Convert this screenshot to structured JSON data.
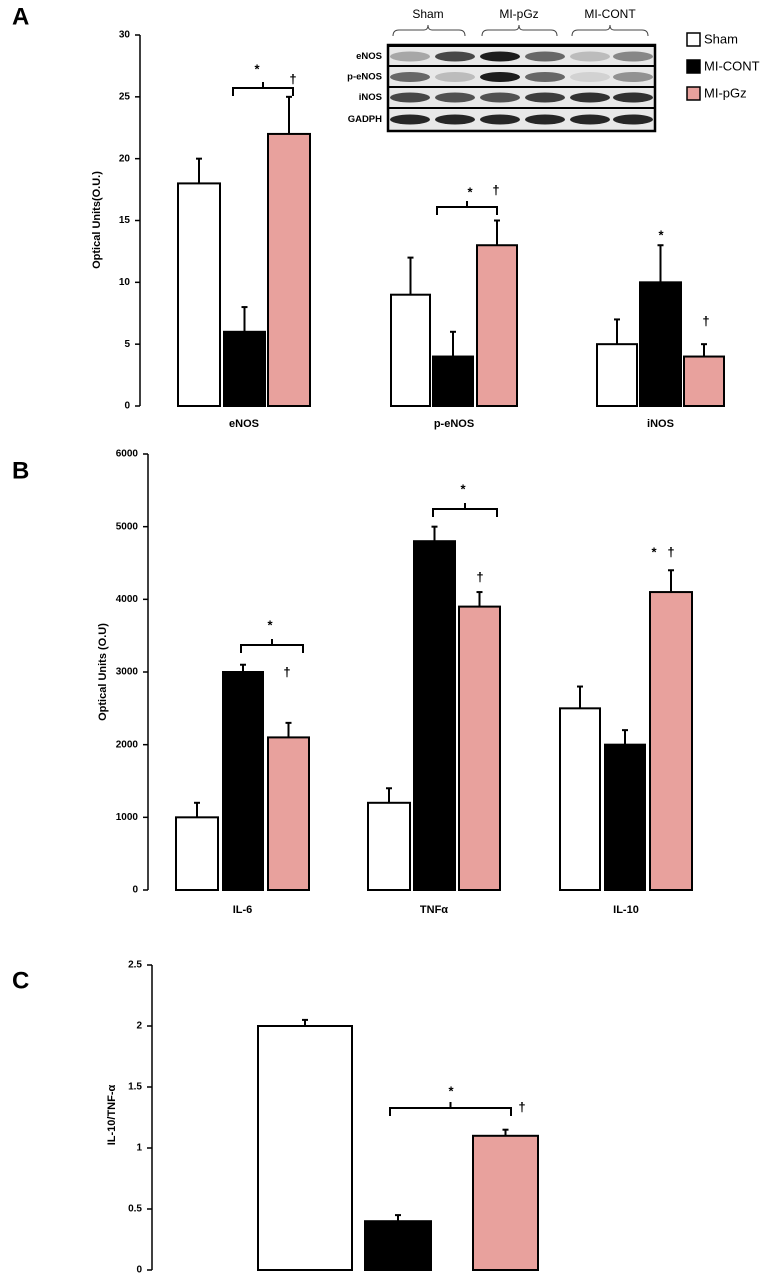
{
  "chart_data": [
    {
      "type": "bar",
      "panel": "A",
      "y_label": "Optical Units(O.U.)",
      "categories": [
        "eNOS",
        "p-eNOS",
        "iNOS"
      ],
      "series": [
        {
          "name": "Sham",
          "color": "#ffffff",
          "values": [
            18,
            9,
            5
          ],
          "errors": [
            2,
            3,
            2
          ]
        },
        {
          "name": "MI-CONT",
          "color": "#000000",
          "values": [
            6,
            4,
            10
          ],
          "errors": [
            2,
            2,
            3
          ]
        },
        {
          "name": "MI-pGz",
          "color": "#e8a19d",
          "values": [
            22,
            13,
            4
          ],
          "errors": [
            3,
            2,
            1
          ]
        }
      ],
      "ylim": [
        0,
        30
      ],
      "yticks": [
        0,
        5,
        10,
        15,
        20,
        25,
        30
      ],
      "legend": "top-right",
      "annotations": [
        "*",
        "†",
        "*",
        "†",
        "*",
        "†"
      ],
      "inset": {
        "rows": [
          "eNOS",
          "p-eNOS",
          "iNOS",
          "GADPH"
        ],
        "groups": [
          "Sham",
          "MI-pGz",
          "MI-CONT"
        ]
      }
    },
    {
      "type": "bar",
      "panel": "B",
      "y_label": "Optical Units (O.U)",
      "categories": [
        "IL-6",
        "TNFα",
        "IL-10"
      ],
      "series": [
        {
          "name": "Sham",
          "color": "#ffffff",
          "values": [
            1000,
            1200,
            2500
          ],
          "errors": [
            200,
            200,
            300
          ]
        },
        {
          "name": "MI-CONT",
          "color": "#000000",
          "values": [
            3000,
            4800,
            2000
          ],
          "errors": [
            100,
            200,
            200
          ]
        },
        {
          "name": "MI-pGz",
          "color": "#e8a19d",
          "values": [
            2100,
            3900,
            4100
          ],
          "errors": [
            200,
            200,
            300
          ]
        }
      ],
      "ylim": [
        0,
        6000
      ],
      "yticks": [
        0,
        1000,
        2000,
        3000,
        4000,
        5000,
        6000
      ],
      "annotations": [
        "*",
        "†",
        "*",
        "†",
        "*",
        "†"
      ]
    },
    {
      "type": "bar",
      "panel": "C",
      "y_label": "IL-10/TNF-α",
      "values": [
        2,
        0.4,
        1.1
      ],
      "errors": [
        0.05,
        0.05,
        0.05
      ],
      "colors": [
        "#ffffff",
        "#000000",
        "#e8a19d"
      ],
      "ylim": [
        0,
        2.5
      ],
      "yticks": [
        0,
        0.5,
        1,
        1.5,
        2,
        2.5
      ],
      "annotations": [
        "*",
        "†"
      ]
    }
  ]
}
